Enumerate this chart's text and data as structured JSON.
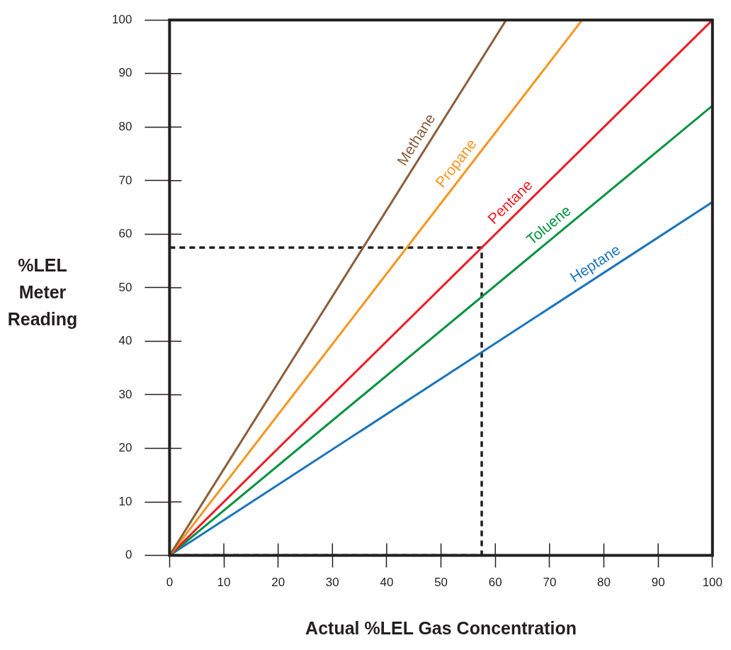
{
  "chart_data": {
    "type": "line",
    "xlabel": "Actual %LEL Gas Concentration",
    "ylabel": "%LEL Meter Reading",
    "xlim": [
      0,
      100
    ],
    "ylim": [
      0,
      100
    ],
    "xticks": [
      0,
      10,
      20,
      30,
      40,
      50,
      60,
      70,
      80,
      90,
      100
    ],
    "yticks": [
      0,
      10,
      20,
      30,
      40,
      50,
      60,
      70,
      80,
      90,
      100
    ],
    "grid": false,
    "legend": false,
    "marker": "none",
    "line_style": "solid",
    "series": [
      {
        "name": "Methane",
        "color": "#8b5e3c",
        "x": [
          0,
          62
        ],
        "values": [
          0,
          100
        ]
      },
      {
        "name": "Propane",
        "color": "#f7941d",
        "x": [
          0,
          76
        ],
        "values": [
          0,
          100
        ]
      },
      {
        "name": "Pentane",
        "color": "#ed1c24",
        "x": [
          0,
          100
        ],
        "values": [
          0,
          100
        ]
      },
      {
        "name": "Toluene",
        "color": "#00923f",
        "x": [
          0,
          100
        ],
        "values": [
          0,
          84
        ]
      },
      {
        "name": "Heptane",
        "color": "#1b75bc",
        "x": [
          0,
          100
        ],
        "values": [
          0,
          66
        ]
      },
      {
        "color": "#231f20",
        "line_style": "dashed",
        "x": [
          0,
          57.5,
          57.5,
          0
        ],
        "values": [
          57.5,
          57.5,
          0,
          0
        ]
      }
    ]
  }
}
